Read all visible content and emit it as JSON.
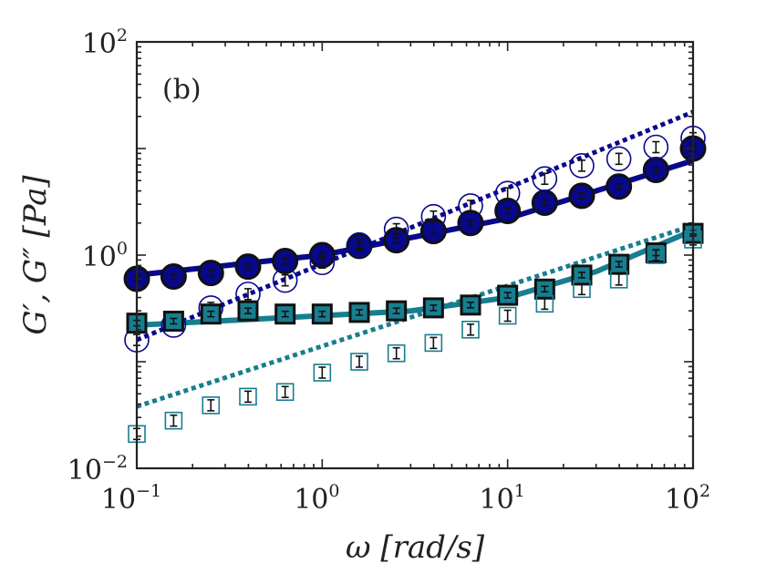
{
  "chart_data": {
    "type": "scatter",
    "panel_label": "(b)",
    "xlabel": "ω [rad/s]",
    "ylabel": "G′, G″ [Pa]",
    "xscale": "log",
    "yscale": "log",
    "xlim": [
      0.1,
      100
    ],
    "ylim": [
      0.01,
      100
    ],
    "x_ticks": [
      {
        "value": 0.1,
        "base": "10",
        "exp": "−1"
      },
      {
        "value": 1,
        "base": "10",
        "exp": "0"
      },
      {
        "value": 10,
        "base": "10",
        "exp": "1"
      },
      {
        "value": 100,
        "base": "10",
        "exp": "2"
      }
    ],
    "y_ticks": [
      {
        "value": 0.01,
        "base": "10",
        "exp": "−2"
      },
      {
        "value": 1,
        "base": "10",
        "exp": "0"
      },
      {
        "value": 100,
        "base": "10",
        "exp": "2"
      }
    ],
    "x": [
      0.1,
      0.158,
      0.251,
      0.398,
      0.631,
      1.0,
      1.585,
      2.512,
      3.981,
      6.31,
      10.0,
      15.85,
      25.12,
      39.81,
      63.1,
      100.0
    ],
    "series": [
      {
        "name": "G' (filled circles)",
        "marker": "circle",
        "filled": true,
        "color": "#08088c",
        "values": [
          0.6,
          0.63,
          0.68,
          0.78,
          0.88,
          1.0,
          1.22,
          1.38,
          1.68,
          2.0,
          2.6,
          3.1,
          3.6,
          4.4,
          6.3,
          10.0
        ]
      },
      {
        "name": "G'' (open circles)",
        "marker": "circle",
        "filled": false,
        "color": "#08088c",
        "values": [
          0.16,
          0.22,
          0.32,
          0.43,
          0.58,
          0.85,
          1.25,
          1.75,
          2.3,
          2.9,
          3.8,
          5.2,
          6.9,
          8.0,
          10.3,
          12.5
        ]
      },
      {
        "name": "G' (filled squares)",
        "marker": "square",
        "filled": true,
        "color": "#177e90",
        "values": [
          0.23,
          0.24,
          0.28,
          0.3,
          0.28,
          0.28,
          0.29,
          0.3,
          0.32,
          0.34,
          0.42,
          0.48,
          0.65,
          0.82,
          1.05,
          1.6
        ]
      },
      {
        "name": "G'' (open squares)",
        "marker": "square",
        "filled": false,
        "color": "#177e90",
        "values": [
          0.021,
          0.028,
          0.039,
          0.047,
          0.052,
          0.079,
          0.1,
          0.12,
          0.15,
          0.2,
          0.27,
          0.35,
          0.48,
          0.59,
          1.0,
          1.4
        ]
      }
    ],
    "fits": [
      {
        "name": "fit G' circles",
        "style": "solid",
        "color": "#08088c",
        "x": [
          0.1,
          1,
          10,
          100
        ],
        "y": [
          0.65,
          1.0,
          2.2,
          7.7
        ]
      },
      {
        "name": "fit G'' circles",
        "style": "dotted",
        "color": "#08088c",
        "x": [
          0.1,
          100
        ],
        "y": [
          0.16,
          22.0
        ]
      },
      {
        "name": "fit G' squares",
        "style": "solid",
        "color": "#177e90",
        "x": [
          0.1,
          1,
          3,
          10,
          30,
          100
        ],
        "y": [
          0.22,
          0.27,
          0.3,
          0.4,
          0.7,
          1.7
        ]
      },
      {
        "name": "fit G'' squares",
        "style": "dotted",
        "color": "#177e90",
        "x": [
          0.1,
          100
        ],
        "y": [
          0.038,
          1.9
        ]
      }
    ]
  }
}
